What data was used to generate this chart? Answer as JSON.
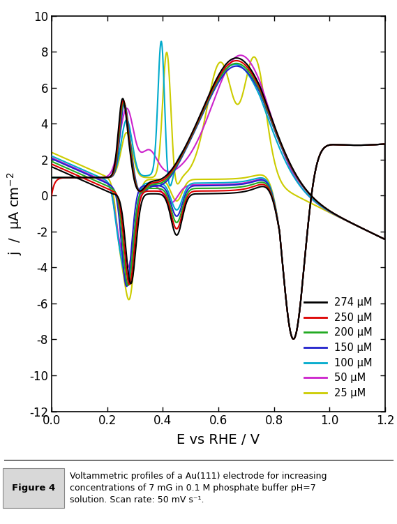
{
  "xlabel": "E vs RHE / V",
  "ylabel": "j  /  μA cm⁻²",
  "xlim": [
    0.0,
    1.2
  ],
  "ylim": [
    -12,
    10
  ],
  "xticks": [
    0.0,
    0.2,
    0.4,
    0.6,
    0.8,
    1.0,
    1.2
  ],
  "yticks": [
    -12,
    -10,
    -8,
    -6,
    -4,
    -2,
    0,
    2,
    4,
    6,
    8,
    10
  ],
  "legend_labels": [
    "274 μM",
    "250 μM",
    "200 μM",
    "150 μM",
    "100 μM",
    "50 μM",
    "25 μM"
  ],
  "colors": [
    "#000000",
    "#dd0000",
    "#22aa22",
    "#2222cc",
    "#00aacc",
    "#cc22cc",
    "#cccc00"
  ],
  "linewidth": 1.5,
  "background_color": "#ffffff",
  "caption_label": "Figure 4",
  "caption_text": "Voltammetric profiles of a Au(111) electrode for increasing\nconcentrations of 7 mG in 0.1 M phosphate buffer pH=7\nsolution. Scan rate: 50 mV s⁻¹.",
  "figsize": [
    5.69,
    7.51
  ],
  "dpi": 100
}
